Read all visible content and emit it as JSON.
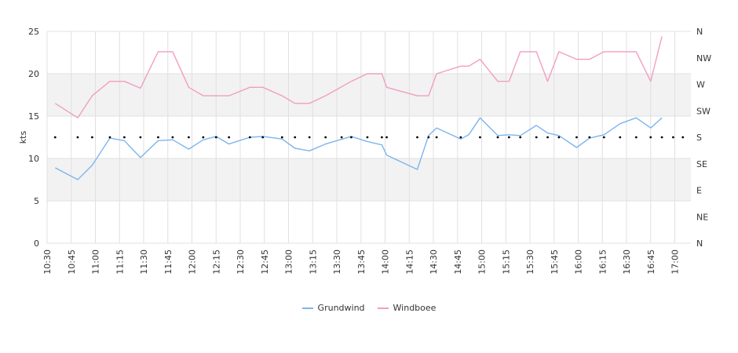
{
  "chart_data": {
    "type": "line",
    "ylabel": "kts",
    "ylim": [
      0,
      25
    ],
    "yticks": [
      "0",
      "5",
      "10",
      "15",
      "20",
      "25"
    ],
    "y2ticks": [
      "N",
      "NE",
      "E",
      "SE",
      "S",
      "SW",
      "W",
      "NW",
      "N"
    ],
    "xlim": [
      "10:30",
      "17:10"
    ],
    "xticks": [
      "10:30",
      "10:45",
      "11:00",
      "11:15",
      "11:30",
      "11:45",
      "12:00",
      "12:15",
      "12:30",
      "12:45",
      "13:00",
      "13:15",
      "13:30",
      "13:45",
      "14:00",
      "14:15",
      "14:30",
      "14:45",
      "15:00",
      "15:15",
      "15:30",
      "15:45",
      "16:00",
      "16:15",
      "16:30",
      "16:45",
      "17:00"
    ],
    "x": [
      "10:35",
      "10:49",
      "10:58",
      "11:09",
      "11:18",
      "11:28",
      "11:39",
      "11:48",
      "11:58",
      "12:07",
      "12:15",
      "12:23",
      "12:36",
      "12:44",
      "12:56",
      "13:04",
      "13:13",
      "13:23",
      "13:39",
      "13:49",
      "13:58",
      "14:01",
      "14:20",
      "14:27",
      "14:32",
      "14:47",
      "14:52",
      "14:59",
      "15:10",
      "15:17",
      "15:24",
      "15:34",
      "15:41",
      "15:48",
      "15:59",
      "16:07",
      "16:16",
      "16:26",
      "16:36",
      "16:45",
      "16:52",
      "16:59",
      "17:05"
    ],
    "series": [
      {
        "name": "Grundwind",
        "color": "#7cb5ec",
        "values": [
          8.9,
          7.5,
          9.2,
          12.4,
          12.1,
          10.1,
          12.1,
          12.2,
          11.1,
          12.2,
          12.6,
          11.7,
          12.5,
          12.6,
          12.3,
          11.2,
          10.9,
          11.7,
          12.6,
          12.0,
          11.6,
          10.4,
          8.7,
          12.7,
          13.6,
          12.3,
          12.8,
          14.8,
          12.7,
          12.8,
          12.7,
          13.9,
          13.0,
          12.7,
          11.3,
          12.4,
          12.8,
          14.1,
          14.8,
          13.6,
          14.8,
          null,
          null
        ]
      },
      {
        "name": "Windboee",
        "color": "#f19ec2",
        "values": [
          16.5,
          14.8,
          17.4,
          19.1,
          19.1,
          18.3,
          22.6,
          22.6,
          18.4,
          17.4,
          17.4,
          17.4,
          18.4,
          18.4,
          17.4,
          16.5,
          16.5,
          17.4,
          19.1,
          20.0,
          20.0,
          18.4,
          17.4,
          17.4,
          20.0,
          20.9,
          20.9,
          21.7,
          19.1,
          19.1,
          22.6,
          22.6,
          19.1,
          22.6,
          21.7,
          21.7,
          22.6,
          22.6,
          22.6,
          19.1,
          24.4,
          null,
          null
        ]
      }
    ],
    "direction_markers": {
      "level": "S",
      "times": [
        "10:35",
        "10:49",
        "10:58",
        "11:09",
        "11:18",
        "11:28",
        "11:39",
        "11:48",
        "11:58",
        "12:07",
        "12:15",
        "12:23",
        "12:36",
        "12:44",
        "12:56",
        "13:04",
        "13:13",
        "13:23",
        "13:33",
        "13:39",
        "13:49",
        "13:58",
        "14:01",
        "14:20",
        "14:27",
        "14:32",
        "14:47",
        "14:59",
        "15:10",
        "15:17",
        "15:24",
        "15:34",
        "15:41",
        "15:48",
        "15:59",
        "16:07",
        "16:16",
        "16:26",
        "16:36",
        "16:45",
        "16:52",
        "16:59",
        "17:05"
      ]
    }
  },
  "legend": [
    {
      "label": "Grundwind",
      "color": "#7cb5ec"
    },
    {
      "label": "Windboee",
      "color": "#f19ec2"
    }
  ]
}
